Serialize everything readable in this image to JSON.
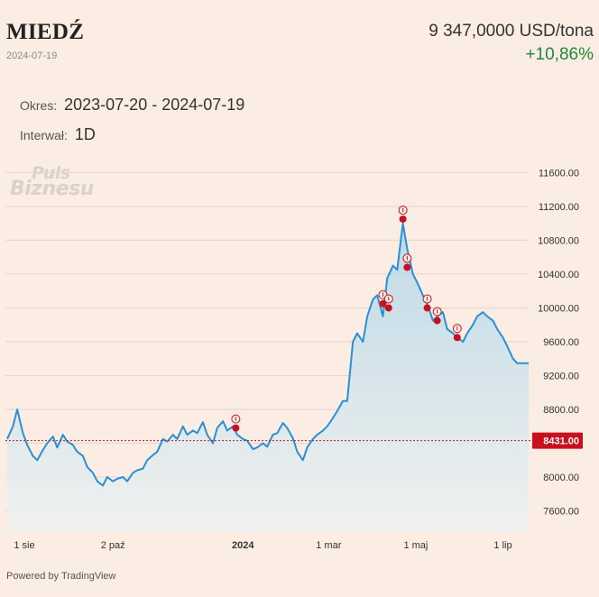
{
  "header": {
    "title": "MIEDŹ",
    "date": "2024-07-19",
    "price": "9 347,0000 USD/tona",
    "change": "+10,86%"
  },
  "meta": {
    "okres_label": "Okres:",
    "okres_value": "2023-07-20 - 2024-07-19",
    "interwal_label": "Interwał:",
    "interwal_value": "1D"
  },
  "watermark": {
    "line1": "Puls",
    "line2": "Biznesu"
  },
  "footer": {
    "text": "Powered by TradingView"
  },
  "colors": {
    "line": "#2b8fd6",
    "area_top": "#b4d6e8",
    "area_bottom": "#eef2f1",
    "reference": "#c8101e",
    "marker": "#c8101e",
    "grid": "#e2d6cc"
  },
  "chart_data": {
    "type": "area",
    "ylim": [
      7350,
      11700
    ],
    "xlim": [
      "2023-07-20",
      "2024-07-19"
    ],
    "yticks": [
      7600,
      8000,
      8400,
      8800,
      9200,
      9600,
      10000,
      10400,
      10800,
      11200,
      11600
    ],
    "ytick_labels": [
      "7600.00",
      "8000.00",
      "8400.00",
      "8800.00",
      "9200.00",
      "9600.00",
      "10000.00",
      "10400.00",
      "10800.00",
      "11200.00",
      "11600.00"
    ],
    "xticks": [
      {
        "date": "2023-08-01",
        "label": "1 sie",
        "bold": false
      },
      {
        "date": "2023-10-02",
        "label": "2 paź",
        "bold": false
      },
      {
        "date": "2024-01-01",
        "label": "2024",
        "bold": true
      },
      {
        "date": "2024-03-01",
        "label": "1 mar",
        "bold": false
      },
      {
        "date": "2024-05-01",
        "label": "1 maj",
        "bold": false
      },
      {
        "date": "2024-07-01",
        "label": "1 lip",
        "bold": false
      }
    ],
    "reference_line": {
      "value": 8431,
      "label": "8431.00"
    },
    "x": [
      "2023-07-20",
      "2023-07-24",
      "2023-07-27",
      "2023-07-31",
      "2023-08-03",
      "2023-08-07",
      "2023-08-10",
      "2023-08-14",
      "2023-08-17",
      "2023-08-21",
      "2023-08-24",
      "2023-08-28",
      "2023-08-31",
      "2023-09-04",
      "2023-09-07",
      "2023-09-11",
      "2023-09-14",
      "2023-09-18",
      "2023-09-21",
      "2023-09-25",
      "2023-09-28",
      "2023-10-02",
      "2023-10-05",
      "2023-10-09",
      "2023-10-12",
      "2023-10-16",
      "2023-10-19",
      "2023-10-23",
      "2023-10-26",
      "2023-10-30",
      "2023-11-02",
      "2023-11-06",
      "2023-11-09",
      "2023-11-13",
      "2023-11-16",
      "2023-11-20",
      "2023-11-23",
      "2023-11-27",
      "2023-11-30",
      "2023-12-04",
      "2023-12-07",
      "2023-12-11",
      "2023-12-14",
      "2023-12-18",
      "2023-12-21",
      "2023-12-25",
      "2023-12-28",
      "2024-01-01",
      "2024-01-04",
      "2024-01-08",
      "2024-01-11",
      "2024-01-15",
      "2024-01-18",
      "2024-01-22",
      "2024-01-25",
      "2024-01-29",
      "2024-02-01",
      "2024-02-05",
      "2024-02-08",
      "2024-02-12",
      "2024-02-15",
      "2024-02-19",
      "2024-02-22",
      "2024-02-26",
      "2024-02-29",
      "2024-03-04",
      "2024-03-07",
      "2024-03-11",
      "2024-03-14",
      "2024-03-18",
      "2024-03-21",
      "2024-03-25",
      "2024-03-28",
      "2024-04-01",
      "2024-04-04",
      "2024-04-08",
      "2024-04-11",
      "2024-04-15",
      "2024-04-18",
      "2024-04-22",
      "2024-04-25",
      "2024-04-29",
      "2024-05-02",
      "2024-05-06",
      "2024-05-09",
      "2024-05-13",
      "2024-05-16",
      "2024-05-20",
      "2024-05-23",
      "2024-05-27",
      "2024-05-30",
      "2024-06-03",
      "2024-06-06",
      "2024-06-10",
      "2024-06-13",
      "2024-06-17",
      "2024-06-20",
      "2024-06-24",
      "2024-06-27",
      "2024-07-01",
      "2024-07-04",
      "2024-07-08",
      "2024-07-11",
      "2024-07-15",
      "2024-07-19"
    ],
    "values": [
      8450,
      8600,
      8800,
      8520,
      8380,
      8250,
      8200,
      8320,
      8400,
      8480,
      8350,
      8500,
      8420,
      8380,
      8300,
      8250,
      8120,
      8050,
      7950,
      7900,
      8000,
      7950,
      7980,
      8000,
      7950,
      8050,
      8080,
      8100,
      8200,
      8260,
      8300,
      8450,
      8420,
      8500,
      8450,
      8600,
      8500,
      8550,
      8520,
      8650,
      8500,
      8400,
      8580,
      8660,
      8550,
      8600,
      8500,
      8450,
      8430,
      8330,
      8350,
      8400,
      8360,
      8500,
      8520,
      8640,
      8580,
      8460,
      8300,
      8200,
      8350,
      8450,
      8500,
      8550,
      8600,
      8700,
      8780,
      8900,
      8900,
      9600,
      9700,
      9600,
      9900,
      10100,
      10150,
      9900,
      10350,
      10500,
      10450,
      11000,
      10700,
      10400,
      10300,
      10150,
      10050,
      9850,
      9900,
      9950,
      9750,
      9700,
      9650,
      9600,
      9700,
      9800,
      9900,
      9950,
      9900,
      9850,
      9750,
      9650,
      9550,
      9400,
      9347,
      9347,
      9347
    ],
    "markers": [
      {
        "date": "2023-12-27",
        "value": 8580
      },
      {
        "date": "2024-04-08",
        "value": 10050
      },
      {
        "date": "2024-04-12",
        "value": 10000
      },
      {
        "date": "2024-04-22",
        "value": 11050
      },
      {
        "date": "2024-04-25",
        "value": 10480
      },
      {
        "date": "2024-05-09",
        "value": 10000
      },
      {
        "date": "2024-05-16",
        "value": 9850
      },
      {
        "date": "2024-05-30",
        "value": 9650
      }
    ]
  }
}
